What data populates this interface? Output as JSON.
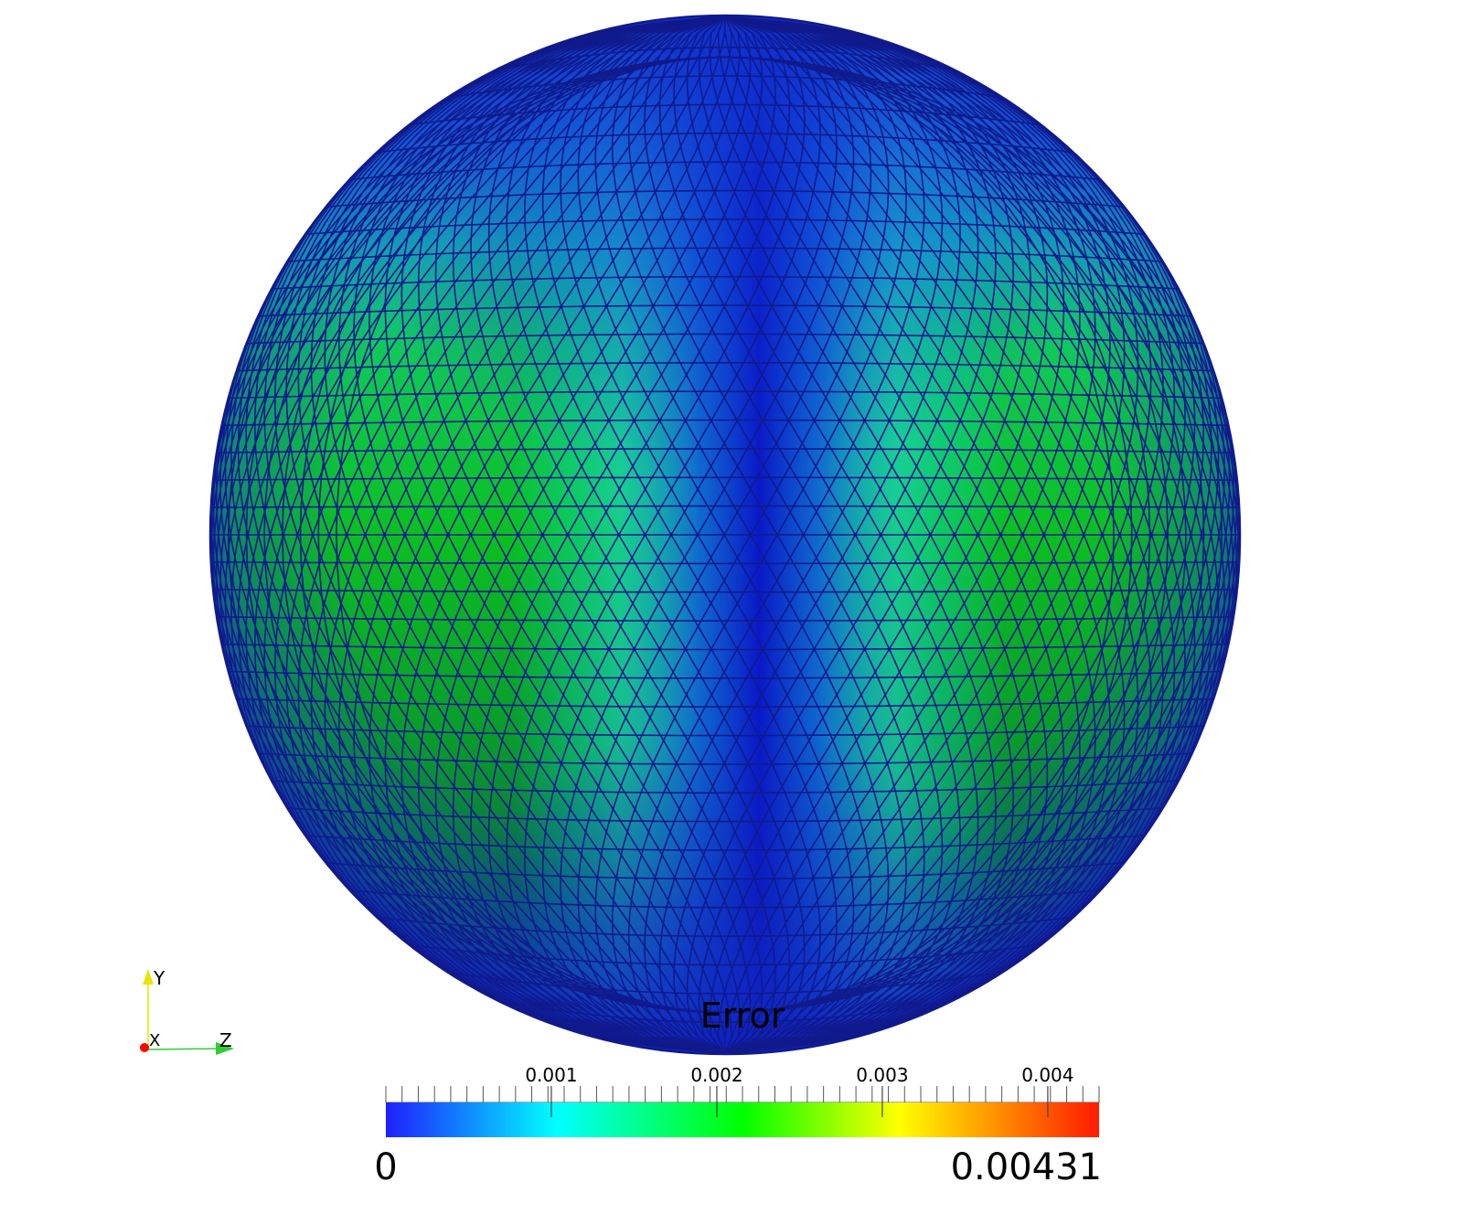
{
  "scalar_bar": {
    "title": "Error",
    "min_label": "0",
    "max_label": "0.00431",
    "range": [
      0,
      0.00431
    ],
    "ticks": [
      {
        "value": 0.001,
        "label": "0.001"
      },
      {
        "value": 0.002,
        "label": "0.002"
      },
      {
        "value": 0.003,
        "label": "0.003"
      },
      {
        "value": 0.004,
        "label": "0.004"
      }
    ],
    "colormap": [
      "#1f1fff",
      "#00ffff",
      "#00ff00",
      "#ffff00",
      "#ff1a00"
    ]
  },
  "axes_triad": {
    "y_label": "Y",
    "x_label": "X",
    "z_label": "Z",
    "y_color": "#e6e600",
    "x_color": "#ff0000",
    "z_color": "#33cc33"
  },
  "mesh": {
    "edge_color": "#101a8c",
    "fill_colors": [
      "#1040d0",
      "#10c8c8",
      "#10b818",
      "#0c6030",
      "#10209a"
    ]
  }
}
